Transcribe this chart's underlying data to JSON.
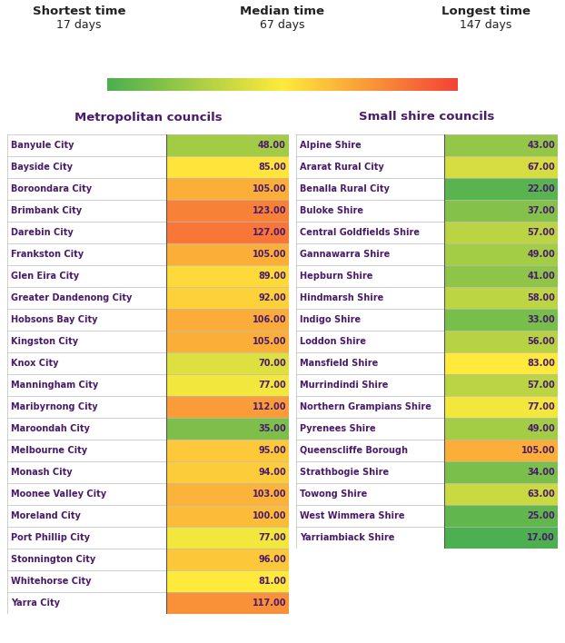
{
  "shortest_time": 17,
  "median_time": 67,
  "longest_time": 147,
  "metro_councils": [
    {
      "name": "Banyule City",
      "value": 48.0
    },
    {
      "name": "Bayside City",
      "value": 85.0
    },
    {
      "name": "Boroondara City",
      "value": 105.0
    },
    {
      "name": "Brimbank City",
      "value": 123.0
    },
    {
      "name": "Darebin City",
      "value": 127.0
    },
    {
      "name": "Frankston City",
      "value": 105.0
    },
    {
      "name": "Glen Eira City",
      "value": 89.0
    },
    {
      "name": "Greater Dandenong City",
      "value": 92.0
    },
    {
      "name": "Hobsons Bay City",
      "value": 106.0
    },
    {
      "name": "Kingston City",
      "value": 105.0
    },
    {
      "name": "Knox City",
      "value": 70.0
    },
    {
      "name": "Manningham City",
      "value": 77.0
    },
    {
      "name": "Maribyrnong City",
      "value": 112.0
    },
    {
      "name": "Maroondah City",
      "value": 35.0
    },
    {
      "name": "Melbourne City",
      "value": 95.0
    },
    {
      "name": "Monash City",
      "value": 94.0
    },
    {
      "name": "Moonee Valley City",
      "value": 103.0
    },
    {
      "name": "Moreland City",
      "value": 100.0
    },
    {
      "name": "Port Phillip City",
      "value": 77.0
    },
    {
      "name": "Stonnington City",
      "value": 96.0
    },
    {
      "name": "Whitehorse City",
      "value": 81.0
    },
    {
      "name": "Yarra City",
      "value": 117.0
    }
  ],
  "small_councils": [
    {
      "name": "Alpine Shire",
      "value": 43.0
    },
    {
      "name": "Ararat Rural City",
      "value": 67.0
    },
    {
      "name": "Benalla Rural City",
      "value": 22.0
    },
    {
      "name": "Buloke Shire",
      "value": 37.0
    },
    {
      "name": "Central Goldfields Shire",
      "value": 57.0
    },
    {
      "name": "Gannawarra Shire",
      "value": 49.0
    },
    {
      "name": "Hepburn Shire",
      "value": 41.0
    },
    {
      "name": "Hindmarsh Shire",
      "value": 58.0
    },
    {
      "name": "Indigo Shire",
      "value": 33.0
    },
    {
      "name": "Loddon Shire",
      "value": 56.0
    },
    {
      "name": "Mansfield Shire",
      "value": 83.0
    },
    {
      "name": "Murrindindi Shire",
      "value": 57.0
    },
    {
      "name": "Northern Grampians Shire",
      "value": 77.0
    },
    {
      "name": "Pyrenees Shire",
      "value": 49.0
    },
    {
      "name": "Queenscliffe Borough",
      "value": 105.0
    },
    {
      "name": "Strathbogie Shire",
      "value": 34.0
    },
    {
      "name": "Towong Shire",
      "value": 63.0
    },
    {
      "name": "West Wimmera Shire",
      "value": 25.0
    },
    {
      "name": "Yarriambiack Shire",
      "value": 17.0
    }
  ],
  "value_min": 17,
  "value_max": 147,
  "bg_color": "#ffffff",
  "label_text_color": "#4a1a6b",
  "value_text_color": "#4a1a6b",
  "header_color": "#4a1a6b",
  "bar_split": 0.565,
  "cmap_colors": [
    "#4caf50",
    "#ffeb3b",
    "#f44336"
  ],
  "legend_labels": [
    "Shortest time",
    "Median time",
    "Longest time"
  ],
  "legend_days": [
    "17 days",
    "67 days",
    "147 days"
  ],
  "metro_header": "Metropolitan councils",
  "small_header": "Small shire councils"
}
